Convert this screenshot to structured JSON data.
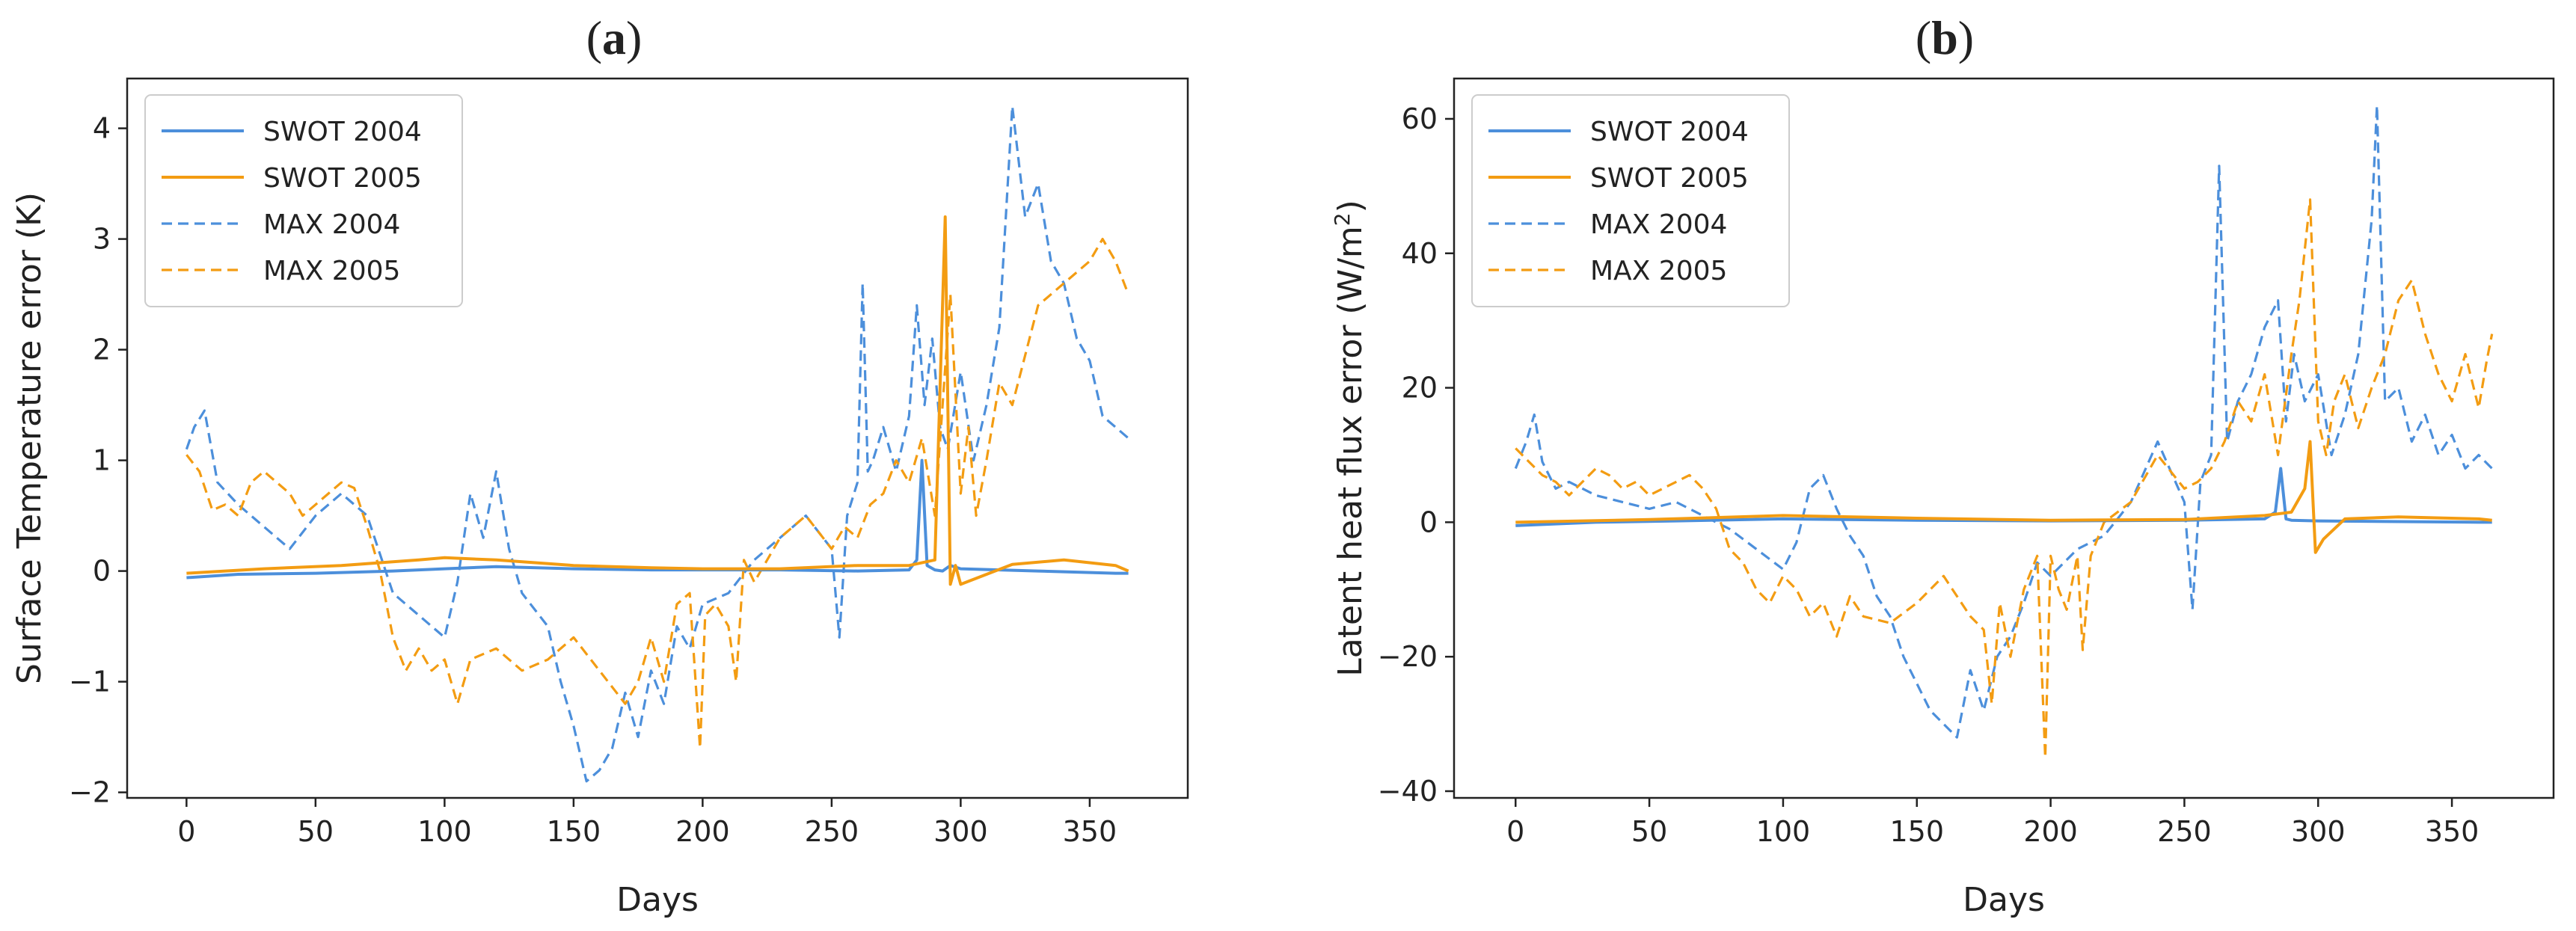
{
  "figure": {
    "panels": [
      {
        "label_open": "(",
        "label": "a",
        "label_close": ")"
      },
      {
        "label_open": "(",
        "label": "b",
        "label_close": ")"
      }
    ]
  },
  "chart_data": [
    {
      "type": "line",
      "title": "(a)",
      "xlabel": "Days",
      "ylabel": "Surface Temperature error (K)",
      "xlim": [
        -23,
        388
      ],
      "ylim": [
        -2.05,
        4.45
      ],
      "xticks": [
        0,
        50,
        100,
        150,
        200,
        250,
        300,
        350
      ],
      "yticks": [
        -2,
        -1,
        0,
        1,
        2,
        3,
        4
      ],
      "ytick_labels": [
        "−2",
        "−1",
        "0",
        "1",
        "2",
        "3",
        "4"
      ],
      "legend_position": "top-left",
      "series": [
        {
          "name": "SWOT 2004",
          "color": "#4C8FDB",
          "style": "solid",
          "x": [
            0,
            20,
            50,
            80,
            100,
            120,
            150,
            180,
            200,
            230,
            260,
            280,
            283,
            285,
            287,
            290,
            293,
            296,
            300,
            330,
            360,
            365
          ],
          "y": [
            -0.06,
            -0.03,
            -0.02,
            0.0,
            0.02,
            0.04,
            0.02,
            0.01,
            0.01,
            0.01,
            0.0,
            0.01,
            0.1,
            1.0,
            0.05,
            0.01,
            0.0,
            0.05,
            0.02,
            0.0,
            -0.02,
            -0.02
          ]
        },
        {
          "name": "SWOT 2005",
          "color": "#F39C12",
          "style": "solid",
          "x": [
            0,
            30,
            60,
            90,
            100,
            120,
            150,
            180,
            200,
            230,
            260,
            280,
            290,
            294,
            296,
            298,
            300,
            320,
            340,
            360,
            365
          ],
          "y": [
            -0.02,
            0.02,
            0.05,
            0.1,
            0.12,
            0.1,
            0.05,
            0.03,
            0.02,
            0.02,
            0.05,
            0.05,
            0.1,
            3.2,
            -0.12,
            0.05,
            -0.12,
            0.06,
            0.1,
            0.05,
            0.0
          ]
        },
        {
          "name": "MAX 2004",
          "color": "#4C8FDB",
          "style": "dashed",
          "x": [
            0,
            3,
            7,
            12,
            20,
            30,
            40,
            50,
            60,
            70,
            80,
            90,
            100,
            105,
            110,
            115,
            120,
            125,
            130,
            140,
            145,
            150,
            155,
            160,
            165,
            170,
            175,
            180,
            185,
            190,
            195,
            200,
            210,
            220,
            230,
            240,
            250,
            253,
            256,
            260,
            262,
            264,
            266,
            270,
            275,
            280,
            283,
            286,
            289,
            292,
            295,
            300,
            305,
            310,
            315,
            320,
            325,
            330,
            335,
            340,
            345,
            350,
            355,
            360,
            365
          ],
          "y": [
            1.1,
            1.3,
            1.45,
            0.8,
            0.6,
            0.4,
            0.2,
            0.5,
            0.7,
            0.5,
            -0.2,
            -0.4,
            -0.6,
            -0.1,
            0.7,
            0.3,
            0.9,
            0.2,
            -0.2,
            -0.5,
            -1.0,
            -1.4,
            -1.9,
            -1.8,
            -1.6,
            -1.1,
            -1.5,
            -0.9,
            -1.2,
            -0.5,
            -0.7,
            -0.3,
            -0.2,
            0.1,
            0.3,
            0.5,
            0.2,
            -0.6,
            0.5,
            0.8,
            2.6,
            0.9,
            1.0,
            1.3,
            0.9,
            1.4,
            2.4,
            1.5,
            2.1,
            1.3,
            1.1,
            1.8,
            1.0,
            1.5,
            2.2,
            4.2,
            3.2,
            3.5,
            2.8,
            2.6,
            2.1,
            1.9,
            1.4,
            1.3,
            1.2
          ]
        },
        {
          "name": "MAX 2005",
          "color": "#F39C12",
          "style": "dashed",
          "x": [
            0,
            5,
            10,
            15,
            20,
            25,
            30,
            35,
            40,
            45,
            50,
            55,
            60,
            65,
            70,
            75,
            80,
            85,
            90,
            95,
            100,
            105,
            110,
            120,
            130,
            140,
            150,
            160,
            170,
            175,
            180,
            185,
            190,
            195,
            199,
            201,
            205,
            210,
            213,
            216,
            220,
            230,
            240,
            250,
            255,
            260,
            265,
            270,
            275,
            280,
            285,
            290,
            293,
            296,
            300,
            303,
            306,
            310,
            315,
            320,
            330,
            340,
            350,
            355,
            360,
            365
          ],
          "y": [
            1.05,
            0.9,
            0.55,
            0.6,
            0.5,
            0.8,
            0.9,
            0.8,
            0.7,
            0.5,
            0.6,
            0.7,
            0.8,
            0.75,
            0.4,
            0.0,
            -0.6,
            -0.9,
            -0.7,
            -0.9,
            -0.8,
            -1.2,
            -0.8,
            -0.7,
            -0.9,
            -0.8,
            -0.6,
            -0.9,
            -1.2,
            -1.0,
            -0.6,
            -1.0,
            -0.3,
            -0.2,
            -1.6,
            -0.4,
            -0.3,
            -0.5,
            -1.0,
            0.1,
            -0.1,
            0.3,
            0.5,
            0.2,
            0.4,
            0.3,
            0.6,
            0.7,
            1.0,
            0.8,
            1.2,
            0.5,
            1.5,
            2.5,
            0.7,
            1.3,
            0.5,
            1.0,
            1.7,
            1.5,
            2.4,
            2.6,
            2.8,
            3.0,
            2.8,
            2.5
          ]
        }
      ]
    },
    {
      "type": "line",
      "title": "(b)",
      "xlabel": "Days",
      "ylabel_main": "Latent heat flux error (W/m",
      "ylabel_sup": "2",
      "ylabel_end": ")",
      "xlim": [
        -23,
        388
      ],
      "ylim": [
        -41,
        66
      ],
      "xticks": [
        0,
        50,
        100,
        150,
        200,
        250,
        300,
        350
      ],
      "yticks": [
        -40,
        -20,
        0,
        20,
        40,
        60
      ],
      "ytick_labels": [
        "−40",
        "−20",
        "0",
        "20",
        "40",
        "60"
      ],
      "legend_position": "top-left",
      "series": [
        {
          "name": "SWOT 2004",
          "color": "#4C8FDB",
          "style": "solid",
          "x": [
            0,
            30,
            60,
            100,
            150,
            200,
            250,
            280,
            284,
            286,
            288,
            290,
            300,
            330,
            360,
            365
          ],
          "y": [
            -0.5,
            0.0,
            0.2,
            0.5,
            0.3,
            0.2,
            0.3,
            0.5,
            1.5,
            8.0,
            0.5,
            0.3,
            0.2,
            0.1,
            0.0,
            0.0
          ]
        },
        {
          "name": "SWOT 2005",
          "color": "#F39C12",
          "style": "solid",
          "x": [
            0,
            50,
            100,
            150,
            200,
            250,
            280,
            290,
            295,
            297,
            299,
            302,
            310,
            330,
            360,
            365
          ],
          "y": [
            0.0,
            0.4,
            1.0,
            0.6,
            0.3,
            0.4,
            1.0,
            1.5,
            5.0,
            12.0,
            -4.5,
            -2.5,
            0.5,
            0.8,
            0.5,
            0.3
          ]
        },
        {
          "name": "MAX 2004",
          "color": "#4C8FDB",
          "style": "dashed",
          "x": [
            0,
            4,
            7,
            10,
            15,
            20,
            30,
            40,
            50,
            60,
            70,
            80,
            90,
            100,
            105,
            110,
            115,
            120,
            125,
            130,
            135,
            140,
            145,
            150,
            155,
            160,
            165,
            170,
            175,
            180,
            185,
            190,
            195,
            200,
            210,
            220,
            230,
            240,
            250,
            253,
            256,
            260,
            263,
            266,
            270,
            275,
            280,
            285,
            288,
            291,
            295,
            300,
            305,
            310,
            315,
            320,
            322,
            325,
            330,
            335,
            340,
            345,
            350,
            355,
            360,
            365
          ],
          "y": [
            8,
            12,
            16,
            9,
            5,
            6,
            4,
            3,
            2,
            3,
            1,
            -1,
            -4,
            -7,
            -3,
            5,
            7,
            2,
            -2,
            -5,
            -11,
            -14,
            -20,
            -24,
            -28,
            -30,
            -32,
            -22,
            -28,
            -20,
            -17,
            -12,
            -6,
            -8,
            -4,
            -2,
            3,
            12,
            3,
            -13,
            6,
            10,
            53,
            12,
            18,
            22,
            29,
            33,
            15,
            25,
            18,
            22,
            10,
            16,
            25,
            45,
            62,
            18,
            20,
            12,
            16,
            10,
            13,
            8,
            10,
            8
          ]
        },
        {
          "name": "MAX 2005",
          "color": "#F39C12",
          "style": "dashed",
          "x": [
            0,
            5,
            10,
            15,
            20,
            25,
            30,
            35,
            40,
            45,
            50,
            55,
            60,
            65,
            70,
            75,
            80,
            85,
            90,
            95,
            100,
            105,
            110,
            115,
            120,
            125,
            130,
            140,
            150,
            160,
            170,
            175,
            178,
            181,
            185,
            190,
            195,
            198,
            200,
            203,
            206,
            210,
            212,
            215,
            220,
            230,
            240,
            250,
            255,
            260,
            265,
            270,
            275,
            280,
            285,
            290,
            293,
            297,
            300,
            303,
            306,
            310,
            315,
            320,
            325,
            330,
            335,
            340,
            345,
            350,
            355,
            360,
            363,
            365
          ],
          "y": [
            11,
            9,
            7,
            6,
            4,
            6,
            8,
            7,
            5,
            6,
            4,
            5,
            6,
            7,
            5,
            2,
            -4,
            -6,
            -10,
            -12,
            -8,
            -10,
            -14,
            -12,
            -17,
            -11,
            -14,
            -15,
            -12,
            -8,
            -14,
            -16,
            -27,
            -12,
            -20,
            -10,
            -5,
            -35,
            -5,
            -10,
            -13,
            -5,
            -19,
            -5,
            0,
            3,
            10,
            5,
            6,
            8,
            12,
            18,
            15,
            22,
            10,
            25,
            33,
            48,
            15,
            10,
            18,
            22,
            14,
            20,
            25,
            33,
            36,
            28,
            22,
            18,
            25,
            17,
            24,
            28
          ]
        }
      ]
    }
  ]
}
